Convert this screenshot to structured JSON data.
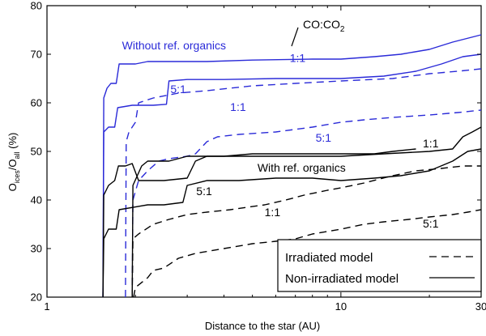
{
  "chart_data": {
    "type": "line",
    "xlabel": "Distance to the star  (AU)",
    "ylabel_main": "O",
    "ylabel_sub1": "ices",
    "ylabel_mid": "/O",
    "ylabel_sub2": "all",
    "ylabel_unit": " (%)",
    "xscale": "log",
    "xlim": [
      1,
      30
    ],
    "ylim": [
      20,
      80
    ],
    "xticks": [
      1,
      10,
      30
    ],
    "xtick_labels": [
      "1",
      "10",
      "30"
    ],
    "yticks": [
      20,
      30,
      40,
      50,
      60,
      70,
      80
    ],
    "ytick_labels": [
      "20",
      "30",
      "40",
      "50",
      "60",
      "70",
      "80"
    ],
    "grid": false,
    "colors": {
      "blue": "#2a2ad8",
      "black": "#000000"
    },
    "series": [
      {
        "color": "blue",
        "style": "solid",
        "points": [
          [
            1.55,
            20
          ],
          [
            1.56,
            61
          ],
          [
            1.6,
            63
          ],
          [
            1.65,
            64
          ],
          [
            1.72,
            64
          ],
          [
            1.76,
            68
          ],
          [
            1.8,
            68
          ],
          [
            2.0,
            68
          ],
          [
            2.2,
            68.5
          ],
          [
            2.6,
            68.5
          ],
          [
            3.5,
            68.5
          ],
          [
            5,
            68.8
          ],
          [
            8,
            69
          ],
          [
            10,
            69
          ],
          [
            13,
            69.5
          ],
          [
            16,
            70
          ],
          [
            20,
            71
          ],
          [
            24,
            72.5
          ],
          [
            30,
            74
          ]
        ]
      },
      {
        "color": "blue",
        "style": "solid",
        "points": [
          [
            1.55,
            20
          ],
          [
            1.56,
            54
          ],
          [
            1.62,
            55
          ],
          [
            1.7,
            55
          ],
          [
            1.74,
            59
          ],
          [
            1.95,
            59.5
          ],
          [
            2.3,
            59.5
          ],
          [
            2.55,
            59.7
          ],
          [
            2.6,
            64.5
          ],
          [
            3.0,
            64.8
          ],
          [
            4,
            64.8
          ],
          [
            6,
            65
          ],
          [
            10,
            65
          ],
          [
            14,
            65.5
          ],
          [
            18,
            66.5
          ],
          [
            22,
            68
          ],
          [
            26,
            69.5
          ],
          [
            30,
            70
          ]
        ]
      },
      {
        "color": "blue",
        "style": "dashed",
        "points": [
          [
            1.85,
            20
          ],
          [
            1.86,
            52
          ],
          [
            1.9,
            54
          ],
          [
            2.0,
            56
          ],
          [
            2.05,
            60
          ],
          [
            2.3,
            61
          ],
          [
            2.8,
            62
          ],
          [
            3.5,
            62.5
          ],
          [
            5,
            63.5
          ],
          [
            7,
            64
          ],
          [
            10,
            64.5
          ],
          [
            15,
            65
          ],
          [
            20,
            66
          ],
          [
            25,
            66.5
          ],
          [
            30,
            67
          ]
        ]
      },
      {
        "color": "blue",
        "style": "dashed",
        "points": [
          [
            1.95,
            20
          ],
          [
            1.96,
            40
          ],
          [
            2.05,
            44
          ],
          [
            2.2,
            46
          ],
          [
            2.4,
            48
          ],
          [
            2.6,
            48.5
          ],
          [
            3.0,
            49
          ],
          [
            3.2,
            49.5
          ],
          [
            3.5,
            52
          ],
          [
            3.8,
            53
          ],
          [
            4.5,
            53.5
          ],
          [
            6,
            54
          ],
          [
            8,
            55
          ],
          [
            10,
            56
          ],
          [
            12,
            56.5
          ],
          [
            15,
            57
          ],
          [
            20,
            57.5
          ],
          [
            25,
            58
          ],
          [
            30,
            58.5
          ]
        ]
      },
      {
        "color": "black",
        "style": "solid",
        "points": [
          [
            1.95,
            20
          ],
          [
            1.96,
            43
          ],
          [
            2.1,
            47
          ],
          [
            2.2,
            48
          ],
          [
            2.6,
            48
          ],
          [
            3.0,
            49
          ],
          [
            4,
            49
          ],
          [
            5,
            49.5
          ],
          [
            7,
            49.5
          ],
          [
            9,
            49.5
          ],
          [
            11,
            49.5
          ],
          [
            13,
            49.5
          ],
          [
            15,
            50
          ],
          [
            18,
            50.5
          ]
        ]
      },
      {
        "color": "black",
        "style": "solid",
        "points": [
          [
            1.55,
            20
          ],
          [
            1.56,
            41
          ],
          [
            1.62,
            43
          ],
          [
            1.7,
            44
          ],
          [
            1.75,
            47
          ],
          [
            1.85,
            47
          ],
          [
            1.95,
            47.5
          ],
          [
            2.05,
            44
          ],
          [
            2.5,
            44
          ],
          [
            3.0,
            44.5
          ],
          [
            3.2,
            48
          ],
          [
            3.5,
            49
          ],
          [
            4.5,
            49
          ],
          [
            6,
            49
          ],
          [
            8,
            49
          ],
          [
            10,
            49
          ],
          [
            14,
            49.5
          ],
          [
            20,
            50
          ],
          [
            24,
            50.5
          ],
          [
            26,
            53
          ],
          [
            28,
            54
          ],
          [
            30,
            55
          ]
        ]
      },
      {
        "color": "black",
        "style": "solid",
        "points": [
          [
            1.55,
            20
          ],
          [
            1.56,
            32
          ],
          [
            1.62,
            34
          ],
          [
            1.72,
            34
          ],
          [
            1.76,
            38
          ],
          [
            2.2,
            39
          ],
          [
            2.5,
            39
          ],
          [
            2.9,
            39.5
          ],
          [
            3.0,
            43
          ],
          [
            3.5,
            44
          ],
          [
            4.5,
            44
          ],
          [
            6,
            44.5
          ],
          [
            8,
            44.5
          ],
          [
            10,
            44
          ],
          [
            13,
            44.5
          ],
          [
            16,
            45
          ],
          [
            20,
            46
          ],
          [
            24,
            48
          ],
          [
            27,
            50
          ],
          [
            30,
            50.5
          ]
        ]
      },
      {
        "color": "black",
        "style": "dashed",
        "points": [
          [
            1.95,
            20
          ],
          [
            1.96,
            32
          ],
          [
            2.05,
            33
          ],
          [
            2.3,
            35
          ],
          [
            2.6,
            36
          ],
          [
            3.0,
            37
          ],
          [
            3.5,
            37.5
          ],
          [
            4.2,
            38
          ],
          [
            4.8,
            38.5
          ],
          [
            5.5,
            39
          ],
          [
            6.5,
            40
          ],
          [
            7.5,
            41
          ],
          [
            9,
            42
          ],
          [
            10,
            42.5
          ],
          [
            12,
            43.5
          ],
          [
            15,
            45
          ],
          [
            18,
            46
          ],
          [
            22,
            46.5
          ],
          [
            26,
            47
          ],
          [
            30,
            47
          ]
        ]
      },
      {
        "color": "black",
        "style": "dashed",
        "points": [
          [
            1.97,
            20
          ],
          [
            2.0,
            22
          ],
          [
            2.2,
            24
          ],
          [
            2.3,
            25.5
          ],
          [
            2.5,
            26
          ],
          [
            2.8,
            28
          ],
          [
            3.2,
            29
          ],
          [
            4,
            30
          ],
          [
            5,
            31
          ],
          [
            6,
            31.5
          ],
          [
            7,
            32
          ],
          [
            8,
            33
          ],
          [
            10,
            34
          ],
          [
            12,
            35
          ],
          [
            14,
            35.5
          ],
          [
            17,
            36
          ],
          [
            20,
            36.5
          ],
          [
            24,
            37
          ],
          [
            27,
            37.5
          ],
          [
            30,
            38
          ]
        ]
      }
    ],
    "annotations": [
      {
        "text": "Without  ref. organics",
        "color": "blue",
        "x": 1.8,
        "y": 71.0
      },
      {
        "text": "1:1",
        "color": "blue",
        "x": 6.7,
        "y": 68.4
      },
      {
        "text": "5:1",
        "color": "blue",
        "x": 2.63,
        "y": 62.0
      },
      {
        "text": "1:1",
        "color": "blue",
        "x": 4.2,
        "y": 58.3
      },
      {
        "text": "5:1",
        "color": "blue",
        "x": 8.2,
        "y": 52.0
      },
      {
        "text": "With  ref. organics",
        "color": "black",
        "x": 5.2,
        "y": 45.8
      },
      {
        "text": "1:1",
        "color": "black",
        "x": 19.0,
        "y": 50.8
      },
      {
        "text": "5:1",
        "color": "black",
        "x": 3.22,
        "y": 41.0
      },
      {
        "text": "1:1",
        "color": "black",
        "x": 5.5,
        "y": 36.7
      },
      {
        "text": "5:1",
        "color": "black",
        "x": 19.0,
        "y": 34.3
      }
    ],
    "coco2_label_main": "CO:CO",
    "coco2_label_sub": "2",
    "legend": {
      "position": "bottom-right",
      "items": [
        {
          "label": "Irradiated  model",
          "style": "dashed"
        },
        {
          "label": "Non-irradiated  model",
          "style": "solid"
        }
      ]
    }
  }
}
